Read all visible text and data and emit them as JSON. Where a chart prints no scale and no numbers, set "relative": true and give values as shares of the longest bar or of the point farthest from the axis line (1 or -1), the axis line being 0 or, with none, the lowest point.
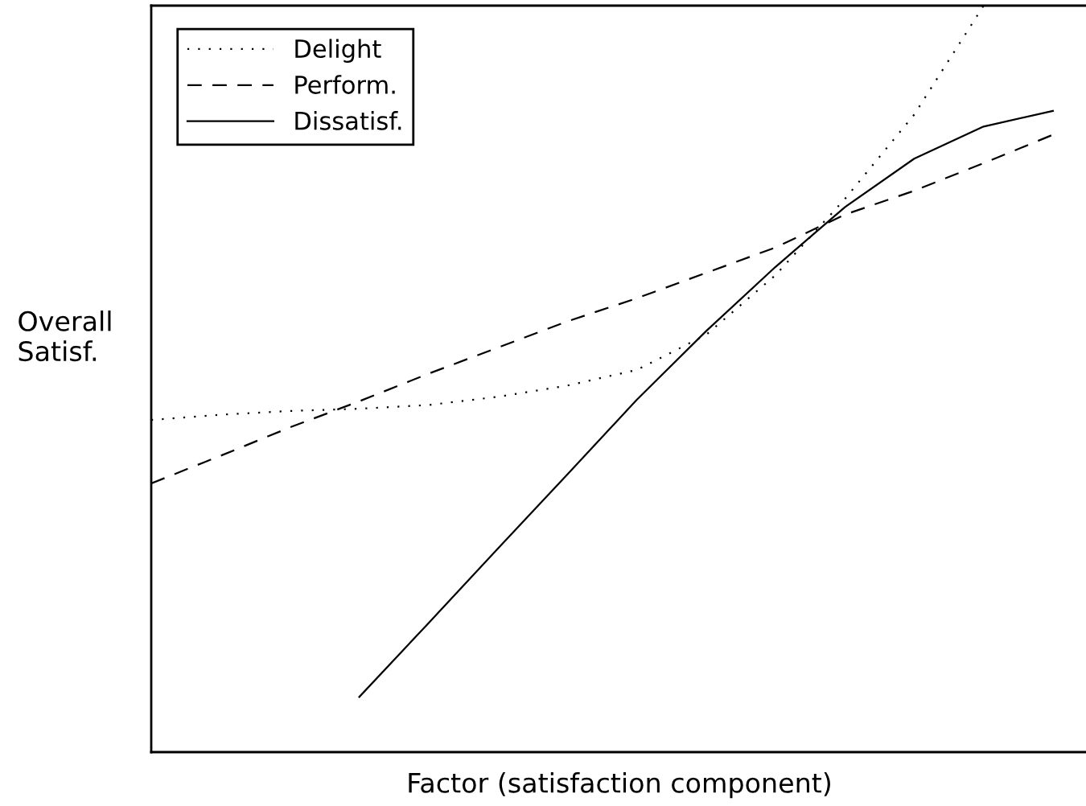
{
  "chart_data": {
    "type": "line",
    "relative": true,
    "xlabel": "Factor (satisfaction component)",
    "ylabel": "Overall\nSatisf.",
    "legend": "top left",
    "categories": [
      null,
      null,
      null,
      null,
      null,
      null,
      null,
      null,
      null,
      null,
      null,
      null,
      null,
      null
    ],
    "series": [
      {
        "name": "Delight",
        "color": "#000000",
        "line_style": "dotted",
        "values": [
          0.445,
          0.452,
          0.457,
          0.46,
          0.465,
          0.476,
          0.491,
          0.512,
          0.559,
          0.639,
          0.741,
          0.854,
          1.0,
          null
        ]
      },
      {
        "name": "Perform.",
        "color": "#000000",
        "line_style": "dashed",
        "values": [
          0.36,
          0.397,
          0.435,
          0.47,
          0.507,
          0.542,
          0.577,
          0.608,
          0.642,
          0.676,
          0.72,
          0.752,
          0.789,
          0.827
        ]
      },
      {
        "name": "Dissatisf.",
        "color": "#000000",
        "line_style": "solid",
        "values": [
          null,
          null,
          null,
          0.074,
          0.173,
          0.273,
          0.372,
          0.472,
          0.564,
          0.65,
          0.73,
          0.795,
          0.838,
          0.859
        ]
      }
    ]
  }
}
